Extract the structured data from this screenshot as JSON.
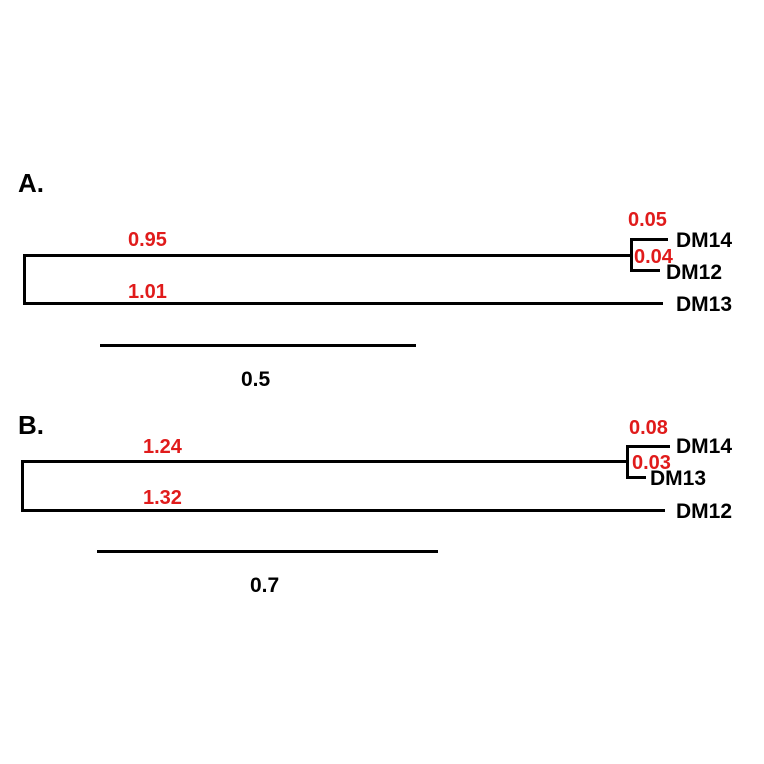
{
  "panels": [
    {
      "label": "A.",
      "taxa": [
        "DM14",
        "DM12",
        "DM13"
      ],
      "branch_lengths": {
        "internal": "0.95",
        "outer": "1.01",
        "top_tip": "0.05",
        "bottom_tip": "0.04"
      },
      "scale_bar": "0.5"
    },
    {
      "label": "B.",
      "taxa": [
        "DM14",
        "DM13",
        "DM12"
      ],
      "branch_lengths": {
        "internal": "1.24",
        "outer": "1.32",
        "top_tip": "0.08",
        "bottom_tip": "0.03"
      },
      "scale_bar": "0.7"
    }
  ],
  "colors": {
    "branch": "#000000",
    "branch_length_label": "#e01b1b"
  }
}
